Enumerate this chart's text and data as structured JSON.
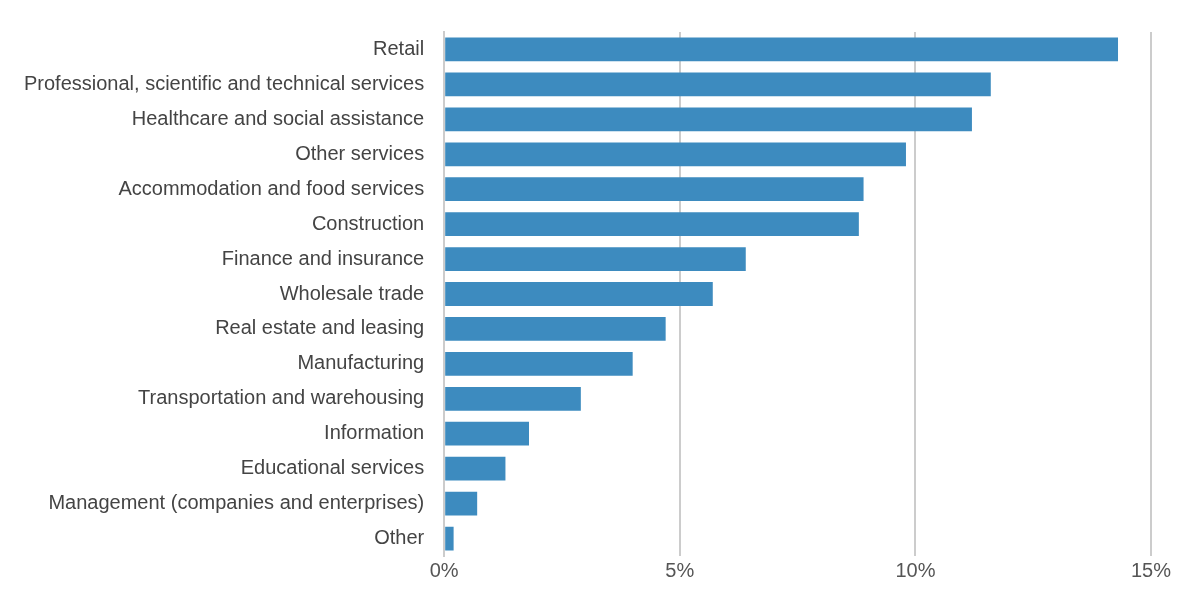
{
  "chart_data": {
    "type": "bar",
    "orientation": "horizontal",
    "categories": [
      "Retail",
      "Professional, scientific and technical services",
      "Healthcare and social assistance",
      "Other services",
      "Accommodation and food services",
      "Construction",
      "Finance and insurance",
      "Wholesale trade",
      "Real estate and leasing",
      "Manufacturing",
      "Transportation and warehousing",
      "Information",
      "Educational services",
      "Management (companies and enterprises)",
      "Other"
    ],
    "values": [
      14.3,
      11.6,
      11.2,
      9.8,
      8.9,
      8.8,
      6.4,
      5.7,
      4.7,
      4.0,
      2.9,
      1.8,
      1.3,
      0.7,
      0.2
    ],
    "color": "#3d8bbf",
    "xlim": [
      0,
      15
    ],
    "xticks": [
      {
        "value": 0,
        "label": "0%"
      },
      {
        "value": 5,
        "label": "5%"
      },
      {
        "value": 10,
        "label": "10%"
      },
      {
        "value": 15,
        "label": "15%"
      }
    ],
    "grid": "x",
    "legend": false
  }
}
